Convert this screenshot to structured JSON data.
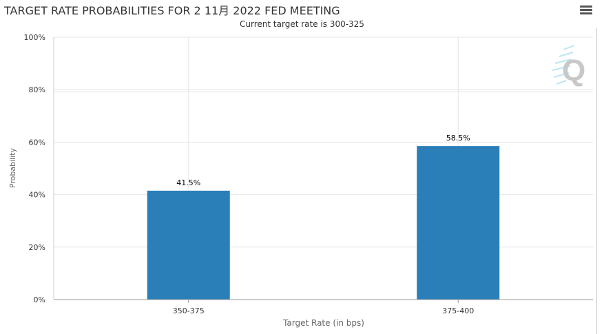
{
  "chart_data": {
    "type": "bar",
    "title": "TARGET RATE PROBABILITIES FOR 2 11月 2022 FED MEETING",
    "subtitle": "Current target rate is 300-325",
    "xlabel": "Target Rate (in bps)",
    "ylabel": "Probability",
    "categories": [
      "350-375",
      "375-400"
    ],
    "values": [
      41.5,
      58.5
    ],
    "data_labels": [
      "41.5%",
      "58.5%"
    ],
    "ylim": [
      0,
      100
    ],
    "yticks": [
      "0%",
      "20%",
      "40%",
      "60%",
      "80%",
      "100%"
    ],
    "ytick_values": [
      0,
      20,
      40,
      60,
      80,
      100
    ],
    "grid": true,
    "bar_color": "#2a7fb8"
  },
  "ui": {
    "menu_icon": "hamburger-menu-icon",
    "watermark_icon": "q-logo-icon"
  }
}
